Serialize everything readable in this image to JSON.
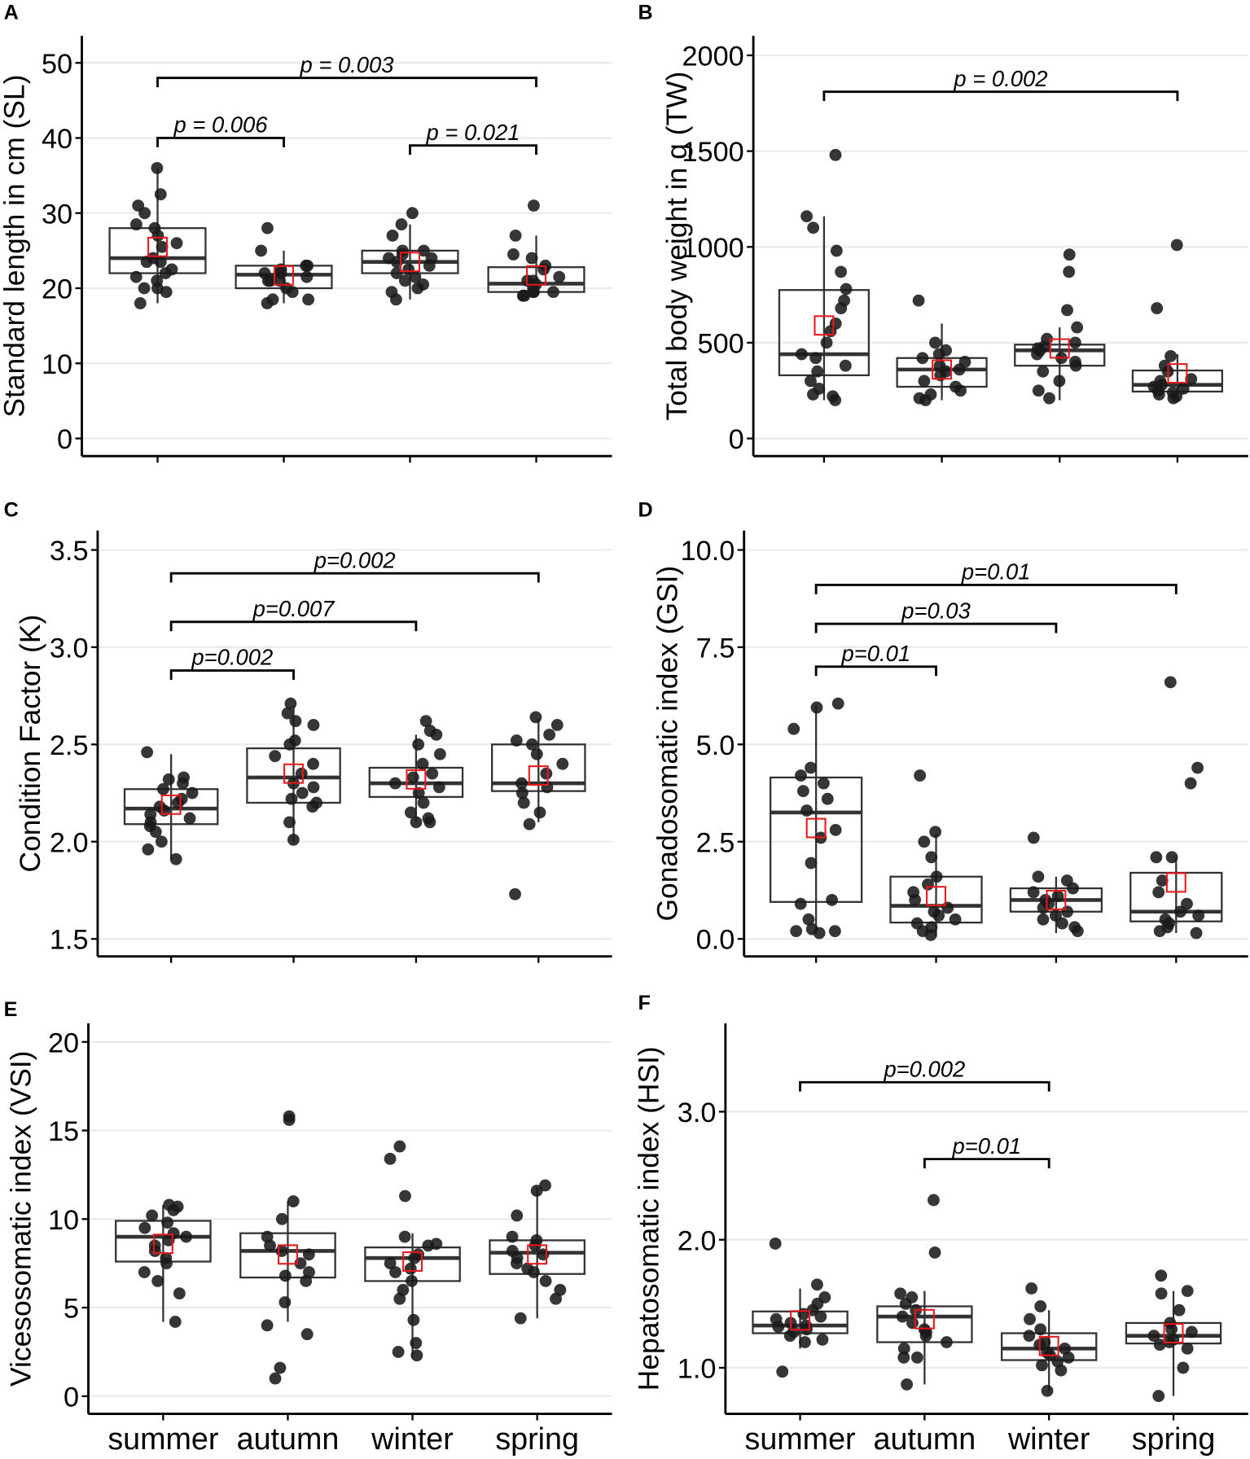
{
  "chart_data": [
    {
      "type": "box",
      "panel": "A",
      "ylabel": "Standard length in cm (SL)",
      "ylim": [
        -2.35,
        53.6
      ],
      "yticks": [
        0,
        10,
        20,
        30,
        40,
        50
      ],
      "grid": true,
      "categories": [
        "summer",
        "autumn",
        "winter",
        "spring"
      ],
      "show_x_labels": false,
      "groups": [
        {
          "q1": 22,
          "median": 24,
          "q3": 28,
          "whisker_low": 18,
          "whisker_high": 36,
          "mean": 25.5,
          "points": [
            36,
            32.5,
            31,
            30,
            28,
            27,
            28.5,
            26,
            25.5,
            24,
            23.5,
            22.5,
            22,
            21.5,
            20,
            20,
            19.5,
            18,
            23.5,
            21
          ]
        },
        {
          "q1": 20,
          "median": 21.8,
          "q3": 23,
          "whisker_low": 18,
          "whisker_high": 25,
          "mean": 21.7,
          "points": [
            28,
            25,
            23,
            23,
            22,
            22,
            21.5,
            21,
            21,
            20,
            19.5,
            18.5,
            18,
            18.5,
            22.5,
            21
          ]
        },
        {
          "q1": 22,
          "median": 23.5,
          "q3": 25,
          "whisker_low": 18.5,
          "whisker_high": 28.5,
          "mean": 23.5,
          "points": [
            30,
            28.5,
            27,
            25,
            25,
            24.5,
            24,
            24,
            23.5,
            23,
            22.5,
            22,
            21.5,
            21,
            20.5,
            20,
            19.5,
            18.5
          ]
        },
        {
          "q1": 19.5,
          "median": 20.6,
          "q3": 22.8,
          "whisker_low": 19,
          "whisker_high": 27,
          "mean": 21.7,
          "points": [
            31,
            27,
            24.5,
            24,
            23,
            22.5,
            21.5,
            21,
            21,
            20.5,
            20,
            19.5,
            19.5,
            19.5,
            19,
            19
          ]
        }
      ],
      "comparisons": [
        {
          "from": 1,
          "to": 4,
          "y": 48,
          "label": "p = 0.003"
        },
        {
          "from": 1,
          "to": 2,
          "y": 40,
          "label": "p = 0.006"
        },
        {
          "from": 3,
          "to": 4,
          "y": 39,
          "label": "p = 0.021"
        }
      ]
    },
    {
      "type": "box",
      "panel": "B",
      "ylabel": "Total body weight in g (TW)",
      "ylim": [
        -92,
        2102
      ],
      "yticks": [
        0,
        500,
        1000,
        1500,
        2000
      ],
      "grid": true,
      "categories": [
        "summer",
        "autumn",
        "winter",
        "spring"
      ],
      "show_x_labels": false,
      "groups": [
        {
          "q1": 330,
          "median": 440,
          "q3": 775,
          "whisker_low": 200,
          "whisker_high": 1160,
          "mean": 590,
          "points": [
            1480,
            1160,
            1100,
            980,
            870,
            780,
            720,
            680,
            600,
            560,
            500,
            440,
            420,
            350,
            300,
            260,
            220,
            200,
            230,
            380
          ]
        },
        {
          "q1": 270,
          "median": 360,
          "q3": 420,
          "whisker_low": 200,
          "whisker_high": 600,
          "mean": 360,
          "points": [
            720,
            500,
            460,
            440,
            420,
            400,
            380,
            360,
            350,
            330,
            300,
            270,
            250,
            230,
            210,
            200
          ]
        },
        {
          "q1": 380,
          "median": 460,
          "q3": 490,
          "whisker_low": 200,
          "whisker_high": 580,
          "mean": 470,
          "points": [
            960,
            870,
            670,
            580,
            520,
            500,
            480,
            470,
            460,
            440,
            420,
            400,
            380,
            350,
            300,
            250,
            210
          ]
        },
        {
          "q1": 245,
          "median": 280,
          "q3": 355,
          "whisker_low": 200,
          "whisker_high": 440,
          "mean": 340,
          "points": [
            1010,
            680,
            430,
            380,
            350,
            310,
            300,
            280,
            270,
            260,
            250,
            240,
            230,
            220,
            210
          ]
        }
      ],
      "comparisons": [
        {
          "from": 1,
          "to": 4,
          "y": 1810,
          "label": "p = 0.002"
        }
      ]
    },
    {
      "type": "box",
      "panel": "C",
      "ylabel": "Condition Factor (K)",
      "ylim": [
        1.41,
        3.6
      ],
      "yticks": [
        "1.5",
        "2.0",
        "2.5",
        "3.0",
        "3.5"
      ],
      "grid": true,
      "categories": [
        "summer",
        "autumn",
        "winter",
        "spring"
      ],
      "show_x_labels": false,
      "groups": [
        {
          "q1": 2.09,
          "median": 2.17,
          "q3": 2.27,
          "whisker_low": 1.91,
          "whisker_high": 2.45,
          "mean": 2.19,
          "points": [
            2.46,
            2.33,
            2.32,
            2.3,
            2.27,
            2.25,
            2.22,
            2.2,
            2.18,
            2.16,
            2.14,
            2.12,
            2.1,
            2.08,
            2.05,
            2.0,
            1.96,
            1.91
          ]
        },
        {
          "q1": 2.2,
          "median": 2.33,
          "q3": 2.48,
          "whisker_low": 2.0,
          "whisker_high": 2.7,
          "mean": 2.35,
          "points": [
            2.71,
            2.66,
            2.62,
            2.6,
            2.52,
            2.5,
            2.44,
            2.4,
            2.35,
            2.3,
            2.28,
            2.25,
            2.22,
            2.2,
            2.18,
            2.1,
            2.01
          ]
        },
        {
          "q1": 2.23,
          "median": 2.3,
          "q3": 2.38,
          "whisker_low": 2.1,
          "whisker_high": 2.55,
          "mean": 2.32,
          "points": [
            2.62,
            2.57,
            2.55,
            2.5,
            2.45,
            2.4,
            2.35,
            2.33,
            2.3,
            2.28,
            2.25,
            2.2,
            2.15,
            2.12,
            2.1,
            2.1
          ]
        },
        {
          "q1": 2.26,
          "median": 2.3,
          "q3": 2.5,
          "whisker_low": 2.1,
          "whisker_high": 2.63,
          "mean": 2.34,
          "points": [
            2.64,
            2.6,
            2.55,
            2.52,
            2.5,
            2.45,
            2.4,
            2.35,
            2.3,
            2.28,
            2.25,
            2.2,
            2.15,
            2.09,
            1.73
          ]
        }
      ],
      "comparisons": [
        {
          "from": 1,
          "to": 4,
          "y": 3.38,
          "label": "p=0.002"
        },
        {
          "from": 1,
          "to": 3,
          "y": 3.13,
          "label": "p=0.007"
        },
        {
          "from": 1,
          "to": 2,
          "y": 2.88,
          "label": "p=0.002"
        }
      ]
    },
    {
      "type": "box",
      "panel": "D",
      "ylabel": "Gonadosomatic index (GSI)",
      "ylim": [
        -0.45,
        10.5
      ],
      "yticks": [
        "0.0",
        "2.5",
        "5.0",
        "7.5",
        "10.0"
      ],
      "grid": true,
      "categories": [
        "summer",
        "autumn",
        "winter",
        "spring"
      ],
      "show_x_labels": false,
      "groups": [
        {
          "q1": 0.95,
          "median": 3.25,
          "q3": 4.15,
          "whisker_low": 0.15,
          "whisker_high": 6.0,
          "mean": 2.85,
          "points": [
            6.05,
            5.95,
            5.4,
            4.4,
            4.2,
            4.0,
            3.8,
            3.6,
            3.3,
            2.8,
            2.6,
            1.95,
            1.0,
            0.9,
            0.5,
            0.25,
            0.2,
            0.15,
            0.2
          ]
        },
        {
          "q1": 0.42,
          "median": 0.85,
          "q3": 1.6,
          "whisker_low": 0.05,
          "whisker_high": 2.7,
          "mean": 1.1,
          "points": [
            4.2,
            2.75,
            2.5,
            2.1,
            1.6,
            1.4,
            1.2,
            1.0,
            0.8,
            0.7,
            0.6,
            0.5,
            0.4,
            0.3,
            0.2,
            0.1
          ]
        },
        {
          "q1": 0.7,
          "median": 1.0,
          "q3": 1.3,
          "whisker_low": 0.15,
          "whisker_high": 1.6,
          "mean": 1.0,
          "points": [
            2.6,
            1.6,
            1.5,
            1.3,
            1.2,
            1.1,
            1.0,
            0.9,
            0.8,
            0.7,
            0.6,
            0.5,
            0.4,
            0.3,
            0.2
          ]
        },
        {
          "q1": 0.45,
          "median": 0.7,
          "q3": 1.7,
          "whisker_low": 0.15,
          "whisker_high": 2.1,
          "mean": 1.45,
          "points": [
            6.6,
            4.4,
            4.0,
            2.1,
            2.1,
            1.5,
            1.2,
            0.9,
            0.7,
            0.6,
            0.5,
            0.4,
            0.3,
            0.2,
            0.15
          ]
        }
      ],
      "comparisons": [
        {
          "from": 1,
          "to": 4,
          "y": 9.1,
          "label": "p=0.01"
        },
        {
          "from": 1,
          "to": 3,
          "y": 8.1,
          "label": "p=0.03"
        },
        {
          "from": 1,
          "to": 2,
          "y": 7.0,
          "label": "p=0.01"
        }
      ]
    },
    {
      "type": "box",
      "panel": "E",
      "ylabel": "Vicesosomatic index (VSI)",
      "ylim": [
        -1.0,
        21.05
      ],
      "yticks": [
        0,
        5,
        10,
        15,
        20
      ],
      "grid": true,
      "categories": [
        "summer",
        "autumn",
        "winter",
        "spring"
      ],
      "show_x_labels": true,
      "groups": [
        {
          "q1": 7.6,
          "median": 9.0,
          "q3": 9.9,
          "whisker_low": 4.2,
          "whisker_high": 10.8,
          "mean": 8.6,
          "points": [
            10.8,
            10.7,
            10.5,
            10.2,
            9.8,
            9.5,
            9.2,
            9.0,
            8.8,
            8.5,
            8.2,
            7.8,
            7.5,
            7.0,
            6.5,
            5.8,
            4.2
          ]
        },
        {
          "q1": 6.7,
          "median": 8.2,
          "q3": 9.2,
          "whisker_low": 4.2,
          "whisker_high": 11.0,
          "mean": 8.0,
          "points": [
            15.8,
            15.6,
            11.0,
            10.0,
            9.0,
            8.5,
            8.2,
            8.0,
            7.5,
            7.0,
            6.8,
            6.5,
            5.3,
            4.0,
            3.5,
            1.6,
            1.0
          ]
        },
        {
          "q1": 6.5,
          "median": 7.8,
          "q3": 8.4,
          "whisker_low": 2.2,
          "whisker_high": 9.2,
          "mean": 7.6,
          "points": [
            14.1,
            13.4,
            11.3,
            9.0,
            8.6,
            8.5,
            8.0,
            7.8,
            7.5,
            7.2,
            7.0,
            6.5,
            6.0,
            5.5,
            4.3,
            3.0,
            2.5,
            2.3
          ]
        },
        {
          "q1": 6.9,
          "median": 8.1,
          "q3": 8.8,
          "whisker_low": 4.4,
          "whisker_high": 11.8,
          "mean": 8.0,
          "points": [
            11.9,
            11.6,
            10.2,
            9.0,
            8.8,
            8.5,
            8.2,
            8.0,
            7.8,
            7.5,
            7.2,
            7.0,
            6.5,
            6.0,
            5.5,
            4.4
          ]
        }
      ],
      "comparisons": []
    },
    {
      "type": "box",
      "panel": "F",
      "ylabel": "Hepatosomatic index (HSI)",
      "ylim": [
        0.64,
        3.69
      ],
      "yticks": [
        "1.0",
        "2.0",
        "3.0"
      ],
      "grid": true,
      "categories": [
        "summer",
        "autumn",
        "winter",
        "spring"
      ],
      "show_x_labels": true,
      "groups": [
        {
          "q1": 1.27,
          "median": 1.33,
          "q3": 1.44,
          "whisker_low": 1.15,
          "whisker_high": 1.62,
          "mean": 1.37,
          "points": [
            1.97,
            1.65,
            1.55,
            1.5,
            1.45,
            1.42,
            1.4,
            1.38,
            1.35,
            1.33,
            1.32,
            1.3,
            1.28,
            1.25,
            1.22,
            1.2,
            0.97
          ]
        },
        {
          "q1": 1.2,
          "median": 1.4,
          "q3": 1.48,
          "whisker_low": 0.87,
          "whisker_high": 1.6,
          "mean": 1.38,
          "points": [
            2.31,
            1.9,
            1.58,
            1.55,
            1.5,
            1.45,
            1.4,
            1.35,
            1.3,
            1.28,
            1.25,
            1.2,
            1.15,
            1.08,
            1.08,
            0.87
          ]
        },
        {
          "q1": 1.06,
          "median": 1.15,
          "q3": 1.27,
          "whisker_low": 0.82,
          "whisker_high": 1.45,
          "mean": 1.17,
          "points": [
            1.62,
            1.48,
            1.38,
            1.3,
            1.25,
            1.2,
            1.18,
            1.15,
            1.12,
            1.1,
            1.08,
            1.05,
            1.02,
            0.98,
            0.82
          ]
        },
        {
          "q1": 1.19,
          "median": 1.25,
          "q3": 1.35,
          "whisker_low": 0.78,
          "whisker_high": 1.6,
          "mean": 1.27,
          "points": [
            1.72,
            1.6,
            1.58,
            1.45,
            1.35,
            1.3,
            1.28,
            1.25,
            1.22,
            1.2,
            1.18,
            1.15,
            1.0,
            0.78
          ]
        }
      ],
      "comparisons": [
        {
          "from": 1,
          "to": 3,
          "y": 3.23,
          "label": "p=0.002"
        },
        {
          "from": 2,
          "to": 3,
          "y": 2.63,
          "label": "p=0.01"
        }
      ]
    }
  ],
  "colors": {
    "points": "#1a1a1a",
    "box": "#333333",
    "mean_marker": "#e8171b",
    "grid": "#ebebeb"
  }
}
